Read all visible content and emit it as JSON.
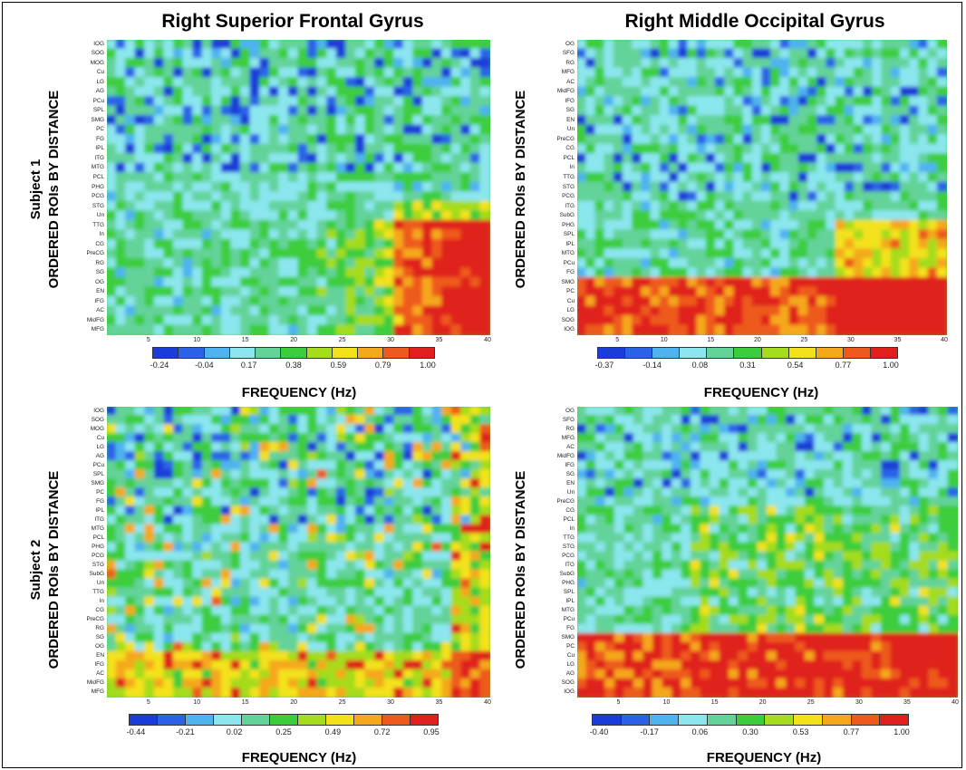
{
  "titles": [
    "Right Superior Frontal Gyrus",
    "Right Middle Occipital Gyrus"
  ],
  "subjects": [
    "Subject 1",
    "Subject 2"
  ],
  "ylabel": "ORDERED ROIs BY DISTANCE",
  "xlabel": "FREQUENCY (Hz)",
  "colorscale": [
    "#1a3cd8",
    "#2a63e6",
    "#4fb3f0",
    "#8be6ee",
    "#63d39a",
    "#3ccd3c",
    "#a5dc1e",
    "#f3e21a",
    "#f5a81b",
    "#ee5a1e",
    "#e0201c"
  ],
  "chart_data": [
    {
      "type": "heatmap",
      "title": "Right Superior Frontal Gyrus",
      "subject": "Subject 1",
      "xlabel": "FREQUENCY (Hz)",
      "ylabel": "ORDERED ROIs BY DISTANCE",
      "xlim": [
        1,
        40
      ],
      "x_ticks": [
        5,
        10,
        15,
        20,
        25,
        30,
        35,
        40
      ],
      "rows": [
        "IOG",
        "SOG",
        "MOG",
        "Cu",
        "LG",
        "AG",
        "PCu",
        "SPL",
        "SMG",
        "PC",
        "FG",
        "IPL",
        "ITG",
        "MTG",
        "PCL",
        "PHG",
        "PCG",
        "STG",
        "Un",
        "TTG",
        "In",
        "CG",
        "PreCG",
        "RG",
        "SG",
        "OG",
        "EN",
        "IFG",
        "AC",
        "MidFG",
        "MFG"
      ],
      "colorbar_ticks": [
        "-0.24",
        "-0.04",
        "0.17",
        "0.38",
        "0.59",
        "0.79",
        "1.00"
      ],
      "vmin": -0.24,
      "vmax": 1.0
    },
    {
      "type": "heatmap",
      "title": "Right Middle Occipital Gyrus",
      "subject": "Subject 1",
      "xlabel": "FREQUENCY (Hz)",
      "ylabel": "ORDERED ROIs BY DISTANCE",
      "xlim": [
        1,
        40
      ],
      "x_ticks": [
        5,
        10,
        15,
        20,
        25,
        30,
        35,
        40
      ],
      "rows": [
        "OG",
        "SFG",
        "RG",
        "MFG",
        "AC",
        "MidFG",
        "IFG",
        "SG",
        "EN",
        "Un",
        "PreCG",
        "CG",
        "PCL",
        "In",
        "TTG",
        "STG",
        "PCG",
        "ITG",
        "SubG",
        "PHG",
        "SPL",
        "IPL",
        "MTG",
        "PCu",
        "FG",
        "SMG",
        "PC",
        "Cu",
        "LG",
        "SOG",
        "IOG"
      ],
      "colorbar_ticks": [
        "-0.37",
        "-0.14",
        "0.08",
        "0.31",
        "0.54",
        "0.77",
        "1.00"
      ],
      "vmin": -0.37,
      "vmax": 1.0
    },
    {
      "type": "heatmap",
      "title": "Right Superior Frontal Gyrus",
      "subject": "Subject 2",
      "xlabel": "FREQUENCY (Hz)",
      "ylabel": "ORDERED ROIs BY DISTANCE",
      "xlim": [
        1,
        40
      ],
      "x_ticks": [
        5,
        10,
        15,
        20,
        25,
        30,
        35,
        40
      ],
      "rows": [
        "IOG",
        "SOG",
        "MOG",
        "Cu",
        "LG",
        "AG",
        "PCu",
        "SPL",
        "SMG",
        "PC",
        "FG",
        "IPL",
        "ITG",
        "MTG",
        "PCL",
        "PHG",
        "PCG",
        "STG",
        "SubG",
        "Un",
        "TTG",
        "In",
        "CG",
        "PreCG",
        "RG",
        "SG",
        "OG",
        "EN",
        "IFG",
        "AC",
        "MidFG",
        "MFG"
      ],
      "colorbar_ticks": [
        "-0.44",
        "-0.21",
        "0.02",
        "0.25",
        "0.49",
        "0.72",
        "0.95"
      ],
      "vmin": -0.44,
      "vmax": 0.95
    },
    {
      "type": "heatmap",
      "title": "Right Middle Occipital Gyrus",
      "subject": "Subject 2",
      "xlabel": "FREQUENCY (Hz)",
      "ylabel": "ORDERED ROIs BY DISTANCE",
      "xlim": [
        1,
        40
      ],
      "x_ticks": [
        5,
        10,
        15,
        20,
        25,
        30,
        35,
        40
      ],
      "rows": [
        "OG",
        "SFG",
        "RG",
        "MFG",
        "AC",
        "MidFG",
        "IFG",
        "SG",
        "EN",
        "Un",
        "PreCG",
        "CG",
        "PCL",
        "In",
        "TTG",
        "STG",
        "PCG",
        "ITG",
        "SubG",
        "PHG",
        "SPL",
        "IPL",
        "MTG",
        "PCu",
        "FG",
        "SMG",
        "PC",
        "Cu",
        "LG",
        "AG",
        "SOG",
        "IOG"
      ],
      "colorbar_ticks": [
        "-0.40",
        "-0.17",
        "0.06",
        "0.30",
        "0.53",
        "0.77",
        "1.00"
      ],
      "vmin": -0.4,
      "vmax": 1.0
    }
  ]
}
